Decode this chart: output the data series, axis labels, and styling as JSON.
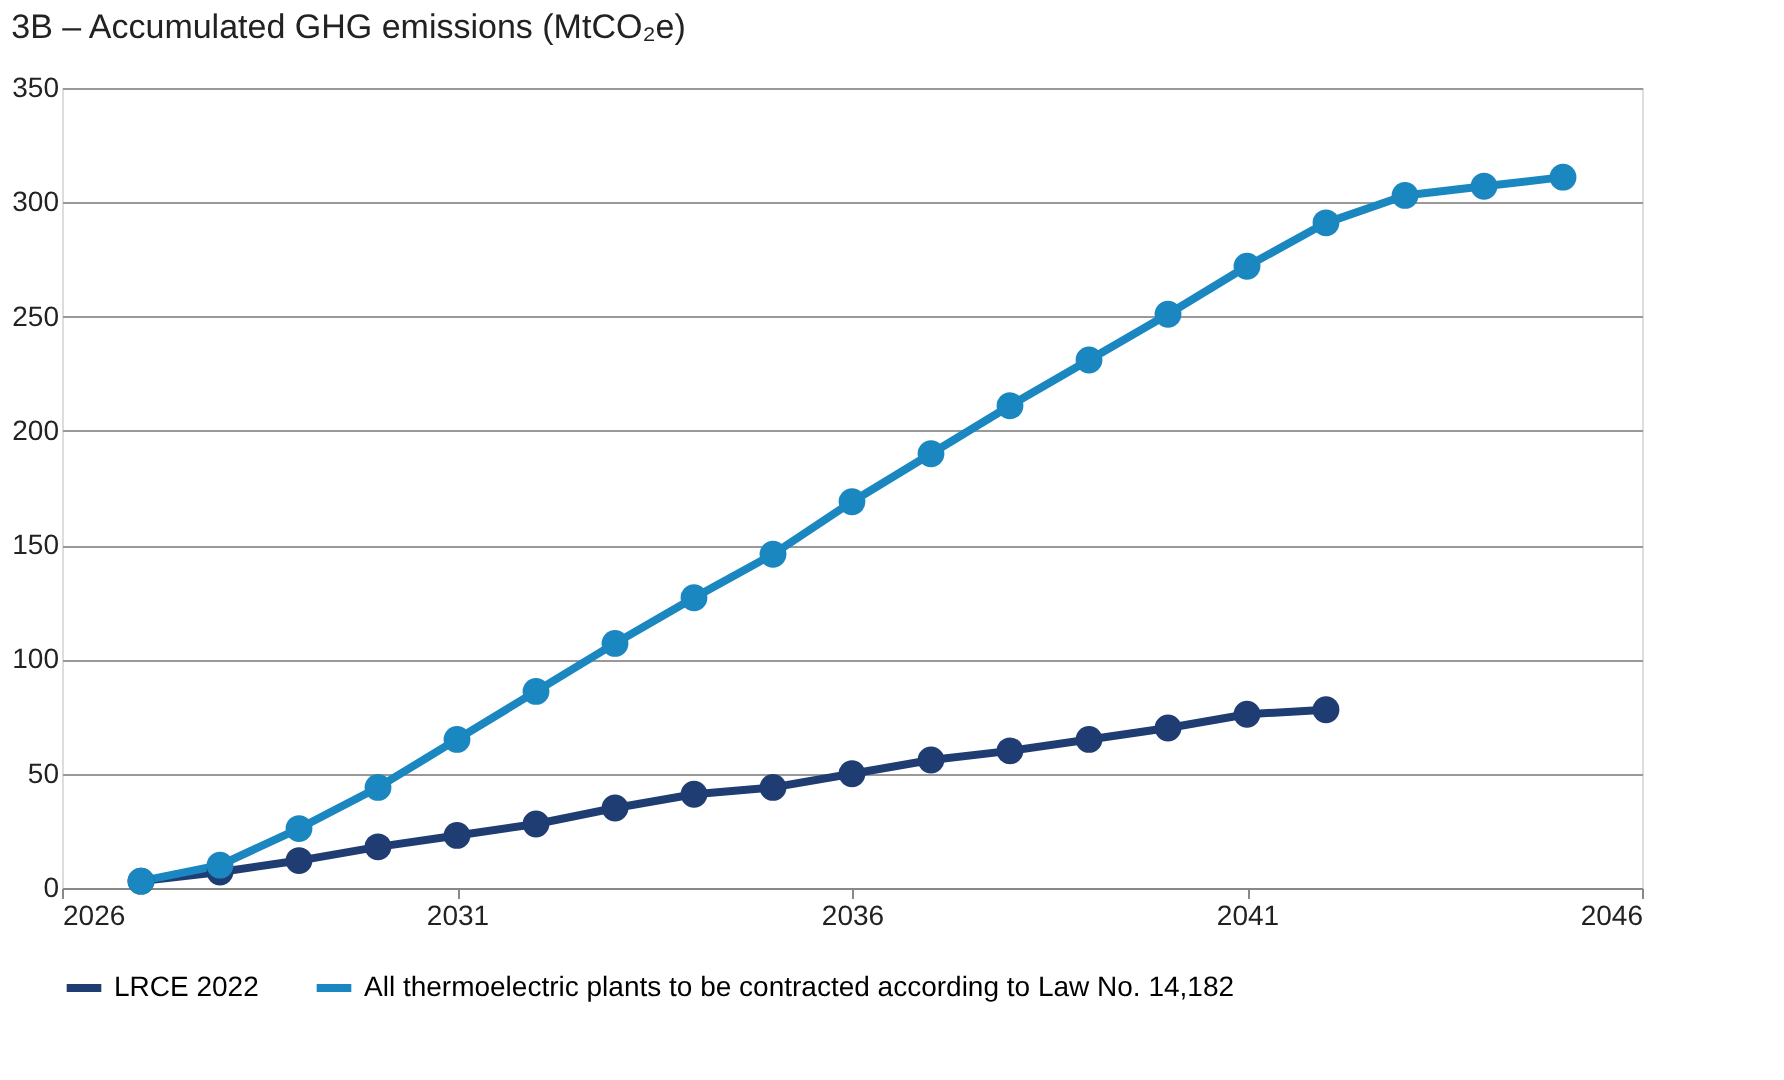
{
  "chart_data": {
    "type": "line",
    "title": "3B – Accumulated GHG emissions (MtCO₂e)",
    "xlim": [
      2026,
      2046
    ],
    "xticks": [
      2026,
      2031,
      2036,
      2041,
      2046
    ],
    "ylim": [
      0,
      350
    ],
    "yticks": [
      0,
      50,
      100,
      150,
      200,
      250,
      300,
      350
    ],
    "grid": "y",
    "legend": "bottom",
    "marker": "circle",
    "line_style": "solid",
    "series": [
      {
        "name": "LRCE 2022",
        "color": "#1f3d72",
        "x": [
          2027,
          2028,
          2029,
          2030,
          2031,
          2032,
          2033,
          2034,
          2035,
          2036,
          2037,
          2038,
          2039,
          2040,
          2041,
          2042
        ],
        "values": [
          3,
          7,
          12,
          18,
          23,
          28,
          35,
          41,
          44,
          50,
          56,
          60,
          65,
          70,
          76,
          78
        ]
      },
      {
        "name": "All thermoelectric plants to be contracted according to Law No. 14,182",
        "color": "#1a87c0",
        "x": [
          2027,
          2028,
          2029,
          2030,
          2031,
          2032,
          2033,
          2034,
          2035,
          2036,
          2037,
          2038,
          2039,
          2040,
          2041,
          2042,
          2043,
          2044,
          2045
        ],
        "values": [
          3,
          10,
          26,
          44,
          65,
          86,
          107,
          127,
          146,
          169,
          190,
          211,
          231,
          251,
          272,
          291,
          303,
          307,
          311
        ]
      }
    ]
  }
}
